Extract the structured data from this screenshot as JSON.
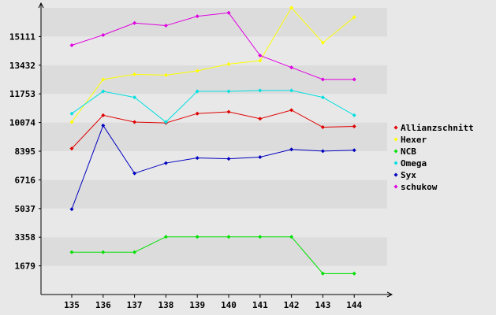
{
  "chart_data": {
    "type": "line",
    "x": [
      "135",
      "136",
      "137",
      "138",
      "139",
      "140",
      "141",
      "142",
      "143",
      "144"
    ],
    "y_ticks": [
      "1679",
      "3358",
      "5037",
      "6716",
      "8395",
      "10074",
      "11753",
      "13432",
      "15111"
    ],
    "ylim": [
      0,
      16790
    ],
    "grid": "horizontal bands",
    "legend_position": "right",
    "background": "#e8e8e8",
    "series": [
      {
        "name": "Allianzschnitt",
        "color": "#e00000",
        "values": [
          8550,
          10500,
          10100,
          10050,
          10600,
          10700,
          10300,
          10800,
          9800,
          9850
        ]
      },
      {
        "name": "Hexer",
        "color": "#ffff00",
        "values": [
          10100,
          12600,
          12900,
          12850,
          13100,
          13500,
          13700,
          16800,
          14750,
          16250
        ]
      },
      {
        "name": "NCB",
        "color": "#00e000",
        "values": [
          2480,
          2480,
          2480,
          3380,
          3380,
          3380,
          3380,
          3380,
          1230,
          1230
        ]
      },
      {
        "name": "Omega",
        "color": "#00e0e0",
        "values": [
          10600,
          11900,
          11550,
          10100,
          11900,
          11900,
          11950,
          11950,
          11550,
          10500
        ]
      },
      {
        "name": "Syx",
        "color": "#0000c0",
        "values": [
          5000,
          9900,
          7100,
          7700,
          8000,
          7950,
          8050,
          8500,
          8400,
          8450
        ]
      },
      {
        "name": "schukow",
        "color": "#e000e0",
        "values": [
          14600,
          15200,
          15900,
          15750,
          16300,
          16500,
          14000,
          13300,
          12600,
          12600
        ]
      }
    ]
  }
}
